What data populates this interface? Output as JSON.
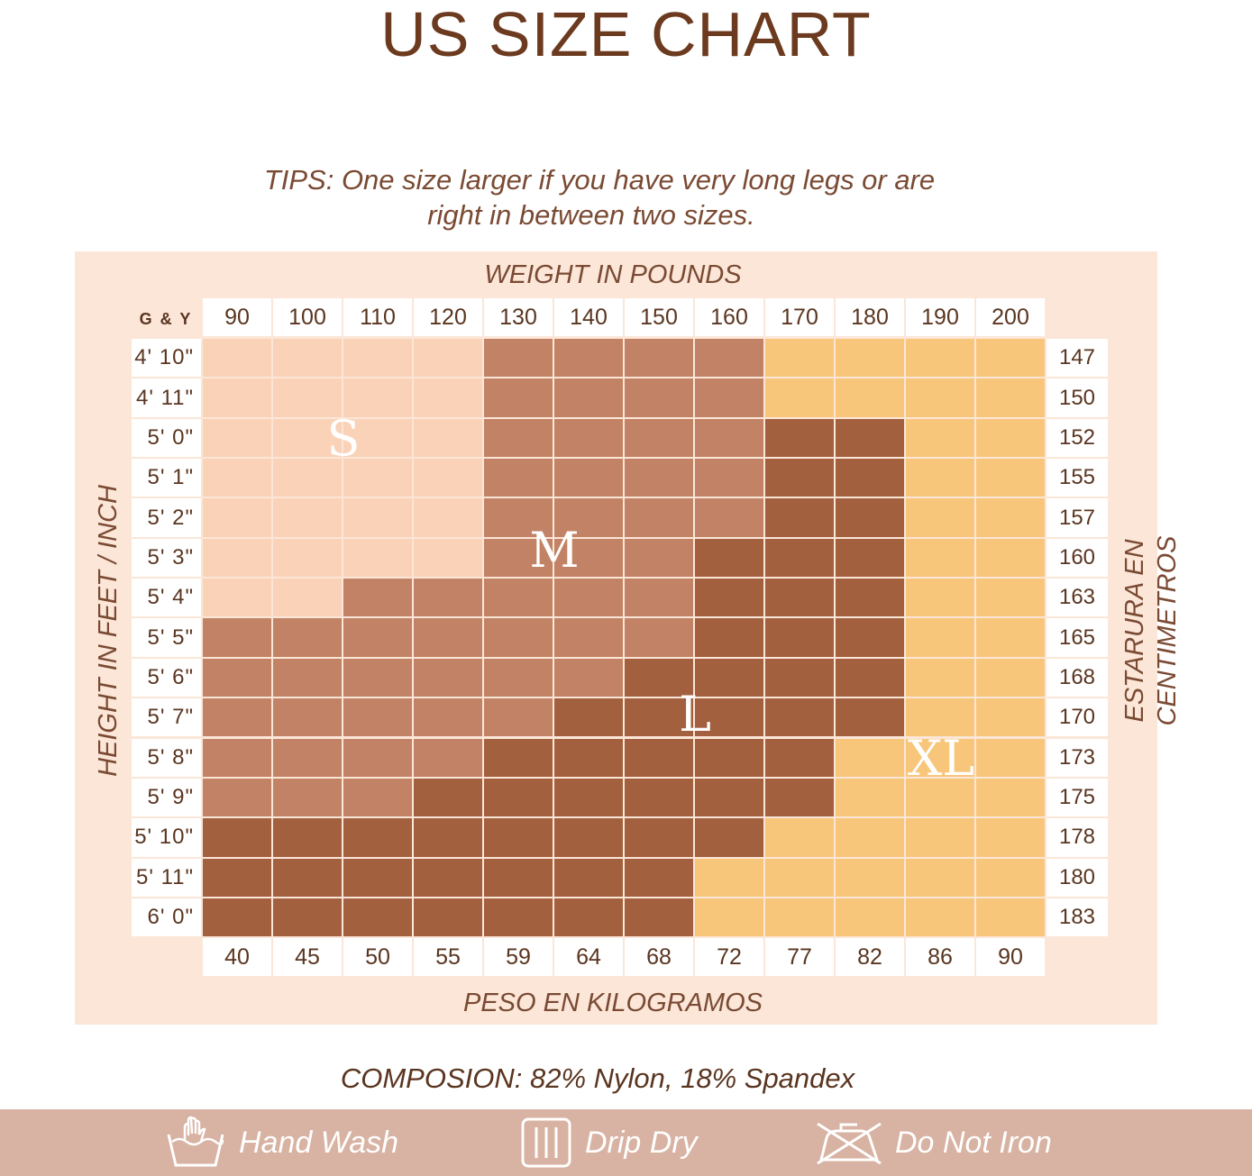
{
  "title": "US SIZE CHART",
  "tips": {
    "line1": "TIPS: One size larger if you have very long legs or are",
    "line2": "right in between two sizes."
  },
  "chart_data": {
    "type": "heatmap",
    "xlabel_top": "WEIGHT IN POUNDS",
    "xlabel_bottom": "PESO EN KILOGRAMOS",
    "ylabel_left": "HEIGHT IN FEET / INCH",
    "ylabel_right": "ESTARURA EN CENTIMETROS",
    "corner_label": "G & Y",
    "weights_lb": [
      "90",
      "100",
      "110",
      "120",
      "130",
      "140",
      "150",
      "160",
      "170",
      "180",
      "190",
      "200"
    ],
    "weights_kg": [
      "40",
      "45",
      "50",
      "55",
      "59",
      "64",
      "68",
      "72",
      "77",
      "82",
      "86",
      "90"
    ],
    "heights_ft": [
      "4' 10\"",
      "4' 11\"",
      "5' 0\"",
      "5' 1\"",
      "5' 2\"",
      "5' 3\"",
      "5' 4\"",
      "5' 5\"",
      "5' 6\"",
      "5' 7\"",
      "5' 8\"",
      "5' 9\"",
      "5' 10\"",
      "5' 11\"",
      "6' 0\""
    ],
    "heights_cm": [
      "147",
      "150",
      "152",
      "155",
      "157",
      "160",
      "163",
      "165",
      "168",
      "170",
      "173",
      "175",
      "178",
      "180",
      "183"
    ],
    "sizes": [
      {
        "name": "S",
        "color": "#f9d2b8"
      },
      {
        "name": "M",
        "color": "#c28265"
      },
      {
        "name": "L",
        "color": "#a3603f"
      },
      {
        "name": "XL",
        "color": "#f8c67b"
      }
    ],
    "grid": [
      [
        "S",
        "S",
        "S",
        "S",
        "M",
        "M",
        "M",
        "M",
        "XL",
        "XL",
        "XL",
        "XL"
      ],
      [
        "S",
        "S",
        "S",
        "S",
        "M",
        "M",
        "M",
        "M",
        "XL",
        "XL",
        "XL",
        "XL"
      ],
      [
        "S",
        "S",
        "S",
        "S",
        "M",
        "M",
        "M",
        "M",
        "L",
        "L",
        "XL",
        "XL"
      ],
      [
        "S",
        "S",
        "S",
        "S",
        "M",
        "M",
        "M",
        "M",
        "L",
        "L",
        "XL",
        "XL"
      ],
      [
        "S",
        "S",
        "S",
        "S",
        "M",
        "M",
        "M",
        "M",
        "L",
        "L",
        "XL",
        "XL"
      ],
      [
        "S",
        "S",
        "S",
        "S",
        "M",
        "M",
        "M",
        "L",
        "L",
        "L",
        "XL",
        "XL"
      ],
      [
        "S",
        "S",
        "M",
        "M",
        "M",
        "M",
        "M",
        "L",
        "L",
        "L",
        "XL",
        "XL"
      ],
      [
        "M",
        "M",
        "M",
        "M",
        "M",
        "M",
        "M",
        "L",
        "L",
        "L",
        "XL",
        "XL"
      ],
      [
        "M",
        "M",
        "M",
        "M",
        "M",
        "M",
        "L",
        "L",
        "L",
        "L",
        "XL",
        "XL"
      ],
      [
        "M",
        "M",
        "M",
        "M",
        "M",
        "L",
        "L",
        "L",
        "L",
        "L",
        "XL",
        "XL"
      ],
      [
        "M",
        "M",
        "M",
        "M",
        "L",
        "L",
        "L",
        "L",
        "L",
        "XL",
        "XL",
        "XL"
      ],
      [
        "M",
        "M",
        "M",
        "L",
        "L",
        "L",
        "L",
        "L",
        "L",
        "XL",
        "XL",
        "XL"
      ],
      [
        "L",
        "L",
        "L",
        "L",
        "L",
        "L",
        "L",
        "L",
        "XL",
        "XL",
        "XL",
        "XL"
      ],
      [
        "L",
        "L",
        "L",
        "L",
        "L",
        "L",
        "L",
        "XL",
        "XL",
        "XL",
        "XL",
        "XL"
      ],
      [
        "L",
        "L",
        "L",
        "L",
        "L",
        "L",
        "L",
        "XL",
        "XL",
        "XL",
        "XL",
        "XL"
      ]
    ]
  },
  "composition": "COMPOSION: 82% Nylon, 18% Spandex",
  "care": {
    "bar_color": "#d8b2a2",
    "items": [
      {
        "icon": "hand-wash-icon",
        "label": "Hand Wash"
      },
      {
        "icon": "drip-dry-icon",
        "label": "Drip Dry"
      },
      {
        "icon": "do-not-iron-icon",
        "label": "Do Not Iron"
      }
    ]
  }
}
